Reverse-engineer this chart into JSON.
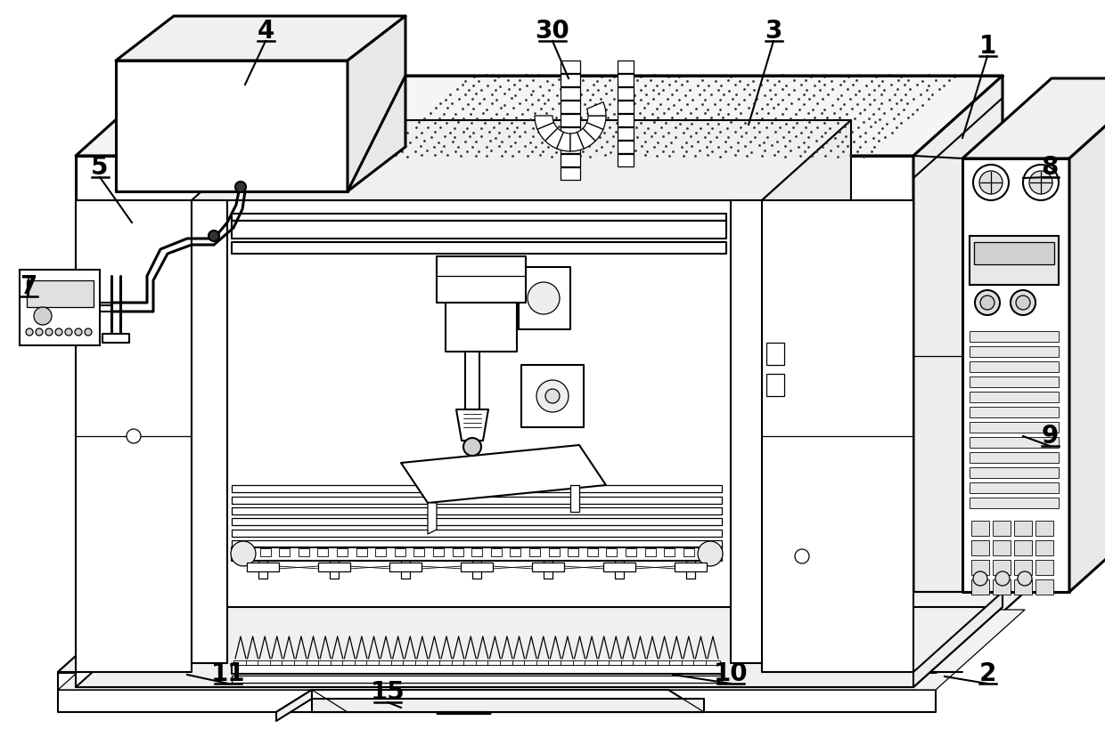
{
  "bg_color": "#ffffff",
  "line_color": "#000000",
  "figsize": [
    12.4,
    8.46
  ],
  "dpi": 100,
  "lw_heavy": 2.2,
  "lw_med": 1.5,
  "lw_thin": 0.9,
  "lw_vt": 0.6,
  "dot_fill": "#444444",
  "panel_fill": "#f8f8f8",
  "label_data": [
    [
      "1",
      1108,
      52,
      1080,
      155,
      null,
      null
    ],
    [
      "2",
      1108,
      757,
      1060,
      760,
      null,
      null
    ],
    [
      "3",
      868,
      35,
      840,
      140,
      null,
      null
    ],
    [
      "4",
      298,
      35,
      275,
      95,
      null,
      null
    ],
    [
      "5",
      112,
      188,
      148,
      250,
      null,
      null
    ],
    [
      "7",
      32,
      322,
      32,
      310,
      null,
      null
    ],
    [
      "8",
      1178,
      188,
      1148,
      200,
      null,
      null
    ],
    [
      "9",
      1178,
      490,
      1148,
      490,
      null,
      null
    ],
    [
      "10",
      820,
      757,
      755,
      758,
      null,
      null
    ],
    [
      "11",
      256,
      757,
      210,
      758,
      null,
      null
    ],
    [
      "15",
      435,
      778,
      450,
      795,
      null,
      null
    ],
    [
      "30",
      620,
      35,
      638,
      88,
      null,
      null
    ]
  ]
}
